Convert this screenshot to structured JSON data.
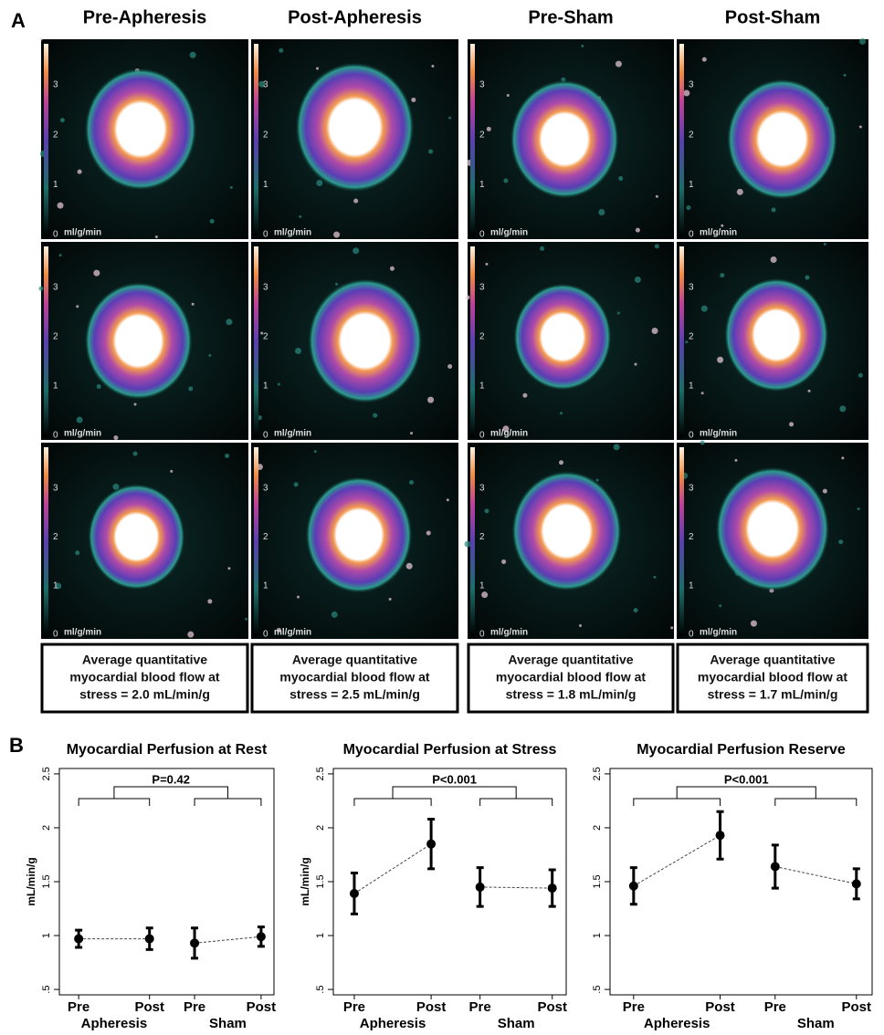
{
  "panel_a": {
    "label": "A",
    "columns": [
      "Pre-Apheresis",
      "Post-Apheresis",
      "Pre-Sham",
      "Post-Sham"
    ],
    "colorbar_ticks": [
      0,
      1,
      2,
      3
    ],
    "colorbar_unit": "ml/g/min",
    "boxes": [
      [
        "Average quantitative",
        "myocardial blood flow at",
        "stress = 2.0 mL/min/g"
      ],
      [
        "Average quantitative",
        "myocardial blood flow at",
        "stress = 2.5 mL/min/g"
      ],
      [
        "Average quantitative",
        "myocardial blood flow at",
        "stress = 1.8 mL/min/g"
      ],
      [
        "Average quantitative",
        "myocardial blood flow at",
        "stress = 1.7 mL/min/g"
      ]
    ]
  },
  "panel_b_label": "B",
  "chart_data": [
    {
      "type": "errorbar",
      "title": "Myocardial Perfusion at Rest",
      "y_label": "mL/min/g",
      "categories": [
        "Pre",
        "Post",
        "Pre",
        "Post"
      ],
      "groups": [
        "Apheresis",
        "Sham"
      ],
      "values": [
        0.97,
        0.97,
        0.93,
        0.99
      ],
      "errors": [
        0.08,
        0.1,
        0.14,
        0.09
      ],
      "annotation": "P=0.42",
      "ylim": [
        0.45,
        2.55
      ],
      "yticks": [
        {
          "value": 0.5,
          "label": ".5"
        },
        1,
        1.5,
        2,
        2.5
      ]
    },
    {
      "type": "errorbar",
      "title": "Myocardial Perfusion at Stress",
      "y_label": "mL/min/g",
      "categories": [
        "Pre",
        "Post",
        "Pre",
        "Post"
      ],
      "groups": [
        "Apheresis",
        "Sham"
      ],
      "values": [
        1.39,
        1.85,
        1.45,
        1.44
      ],
      "errors": [
        0.19,
        0.23,
        0.18,
        0.17
      ],
      "annotation": "P<0.001",
      "ylim": [
        0.45,
        2.55
      ],
      "yticks": [
        {
          "value": 0.5,
          "label": ".5"
        },
        1,
        1.5,
        2,
        2.5
      ]
    },
    {
      "type": "errorbar",
      "title": "Myocardial Perfusion Reserve",
      "categories": [
        "Pre",
        "Post",
        "Pre",
        "Post"
      ],
      "groups": [
        "Apheresis",
        "Sham"
      ],
      "values": [
        1.46,
        1.93,
        1.64,
        1.48
      ],
      "errors": [
        0.17,
        0.22,
        0.2,
        0.14
      ],
      "annotation": "P<0.001",
      "ylim": [
        0.45,
        2.55
      ],
      "yticks": [
        {
          "value": 0.5,
          "label": ".5"
        },
        1,
        1.5,
        2,
        2.5
      ]
    }
  ]
}
